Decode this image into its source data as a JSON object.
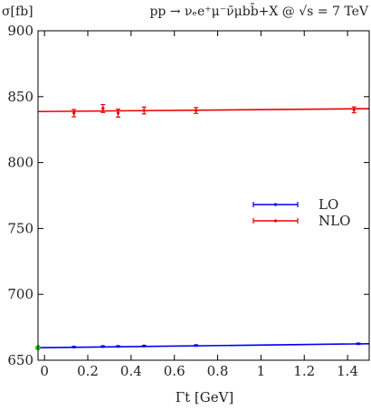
{
  "chart_data": {
    "type": "scatter",
    "title_left": "σ[fb]",
    "title_right": "pp → νₑe⁺μ⁻ν̄μbb̄+X @ √s = 7 TeV",
    "xlabel": "Γt [GeV]",
    "ylabel": "",
    "xlim": [
      -0.03,
      1.5
    ],
    "ylim": [
      650,
      900
    ],
    "xticks": [
      0,
      0.2,
      0.4,
      0.6,
      0.8,
      1,
      1.2,
      1.4
    ],
    "xtick_labels": [
      "0",
      "0.2",
      "0.4",
      "0.6",
      "0.8",
      "1",
      "1.2",
      "1.4"
    ],
    "yticks": [
      650,
      700,
      750,
      800,
      850,
      900
    ],
    "ytick_labels": [
      "650",
      "700",
      "750",
      "800",
      "850",
      "900"
    ],
    "legend_position": "right",
    "series": [
      {
        "name": "LO",
        "color": "#0000ee",
        "points": [
          {
            "x": 0.136,
            "y": 660.0,
            "err": 0.4
          },
          {
            "x": 0.27,
            "y": 660.4,
            "err": 0.4
          },
          {
            "x": 0.34,
            "y": 660.5,
            "err": 0.4
          },
          {
            "x": 0.46,
            "y": 660.8,
            "err": 0.4
          },
          {
            "x": 0.7,
            "y": 661.2,
            "err": 0.4
          },
          {
            "x": 1.45,
            "y": 662.5,
            "err": 0.4
          }
        ],
        "fit": {
          "x0": -0.03,
          "y0": 659.5,
          "x1": 1.5,
          "y1": 662.5
        }
      },
      {
        "name": "NLO",
        "color": "#ee0000",
        "points": [
          {
            "x": 0.136,
            "y": 837.5,
            "err": 2.8
          },
          {
            "x": 0.27,
            "y": 841.0,
            "err": 3.0
          },
          {
            "x": 0.34,
            "y": 837.5,
            "err": 3.0
          },
          {
            "x": 0.46,
            "y": 839.5,
            "err": 2.6
          },
          {
            "x": 0.7,
            "y": 839.5,
            "err": 2.2
          },
          {
            "x": 1.43,
            "y": 840.0,
            "err": 2.2
          }
        ],
        "fit": {
          "x0": -0.03,
          "y0": 838.7,
          "x1": 1.5,
          "y1": 840.9
        }
      },
      {
        "name": "",
        "color": "#22cc22",
        "points": [
          {
            "x": -0.03,
            "y": 659.5,
            "err": 0
          }
        ]
      }
    ]
  }
}
